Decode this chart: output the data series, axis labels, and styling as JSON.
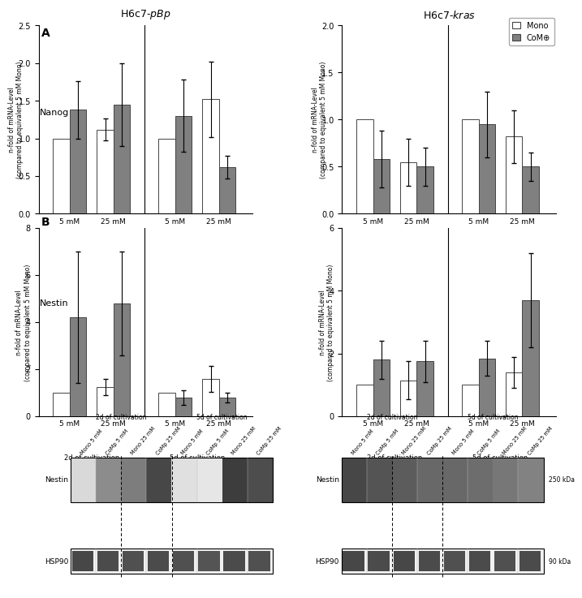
{
  "title_left": "H6c7-​pBp",
  "title_right": "H6c7-​kras",
  "legend_labels": [
    "Mono",
    "CoM⊕"
  ],
  "bar_colors": [
    "white",
    "#808080"
  ],
  "bar_edgecolor": "#444444",
  "ylabel": "n-fold of mRNA-Level\n(compared to equivalent 5 mM Mono)",
  "xlabel_groups": [
    "5 mM",
    "25 mM",
    "5 mM",
    "25 mM"
  ],
  "xlabel_lines": [
    "2d of cultivation",
    "5d of cultivation"
  ],
  "nanog_pbp": {
    "values": [
      1.0,
      1.38,
      1.12,
      1.45,
      1.0,
      1.3,
      1.52,
      0.62
    ],
    "errors": [
      0.0,
      0.38,
      0.15,
      0.55,
      0.0,
      0.48,
      0.5,
      0.15
    ],
    "ylim": [
      0,
      2.5
    ],
    "yticks": [
      0.0,
      0.5,
      1.0,
      1.5,
      2.0,
      2.5
    ]
  },
  "nanog_kras": {
    "values": [
      1.0,
      0.58,
      0.55,
      0.5,
      1.0,
      0.95,
      0.82,
      0.5
    ],
    "errors": [
      0.0,
      0.3,
      0.25,
      0.2,
      0.0,
      0.35,
      0.28,
      0.15
    ],
    "ylim": [
      0,
      2.0
    ],
    "yticks": [
      0.0,
      0.5,
      1.0,
      1.5,
      2.0
    ]
  },
  "nestin_pbp": {
    "values": [
      1.0,
      4.2,
      1.25,
      4.8,
      1.0,
      0.8,
      1.6,
      0.8
    ],
    "errors": [
      0.0,
      2.8,
      0.35,
      2.2,
      0.0,
      0.3,
      0.55,
      0.2
    ],
    "ylim": [
      0,
      8
    ],
    "yticks": [
      0,
      2,
      4,
      6,
      8
    ]
  },
  "nestin_kras": {
    "values": [
      1.0,
      1.8,
      1.15,
      1.75,
      1.0,
      1.85,
      1.4,
      3.7
    ],
    "errors": [
      0.0,
      0.6,
      0.6,
      0.65,
      0.0,
      0.55,
      0.5,
      1.5
    ],
    "ylim": [
      0,
      6
    ],
    "yticks": [
      0,
      2,
      4,
      6
    ]
  },
  "wb_col_labels": [
    "Mono 5 mM",
    "CoMp 5 mM",
    "Mono 25 mM",
    "CoMp 25 mM",
    "Mono 5 mM",
    "CoMp 5 mM",
    "Mono 25 mM",
    "CoMp 25 mM"
  ],
  "wb_section_labels": [
    "2d of cultivation",
    "5d of cultivation"
  ],
  "wb_size_labels": [
    "250 kDa",
    "90 kDa"
  ],
  "wb_left_nestin": [
    0.18,
    0.55,
    0.62,
    0.88,
    0.15,
    0.12,
    0.93,
    0.85
  ],
  "wb_left_hsp90": [
    0.82,
    0.8,
    0.78,
    0.8,
    0.78,
    0.76,
    0.8,
    0.78
  ],
  "wb_right_nestin": [
    0.88,
    0.82,
    0.78,
    0.72,
    0.72,
    0.7,
    0.65,
    0.6
  ],
  "wb_right_hsp90": [
    0.82,
    0.8,
    0.82,
    0.8,
    0.78,
    0.8,
    0.78,
    0.8
  ]
}
